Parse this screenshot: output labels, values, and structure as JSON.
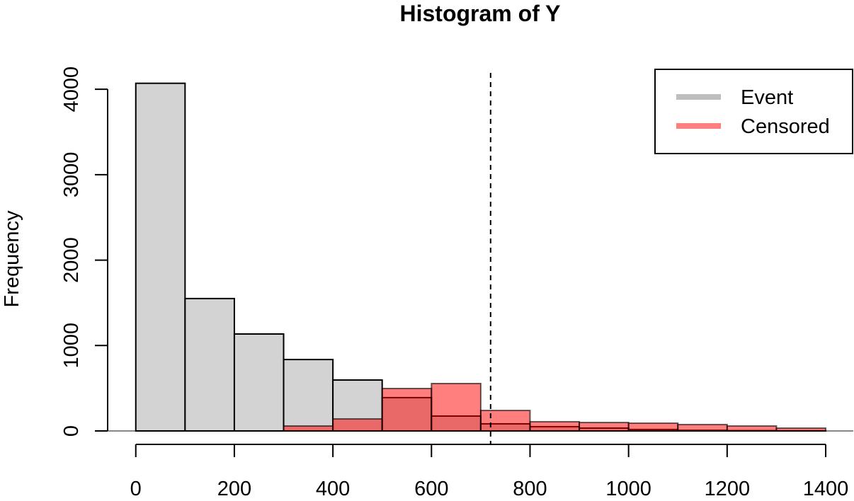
{
  "chart_data": {
    "type": "histogram",
    "title": "Histogram of Y",
    "y_label": "Frequency",
    "series": [
      {
        "name": "Event",
        "color": "#d3d3d3",
        "legend_color": "#bebebe",
        "bins": [
          0,
          100,
          200,
          300,
          400,
          500,
          600,
          700,
          800,
          900,
          1000,
          1100,
          1200,
          1300,
          1400
        ],
        "values": [
          4070,
          1550,
          1135,
          836,
          596,
          390,
          174,
          83,
          50,
          33,
          17,
          8,
          4,
          2
        ]
      },
      {
        "name": "Censored",
        "color": "rgba(255,0,0,0.5)",
        "legend_color": "#ff7f7f",
        "bins": [
          300,
          400,
          500,
          600,
          700,
          800,
          900,
          1000,
          1100,
          1200,
          1300,
          1400
        ],
        "values": [
          58,
          141,
          497,
          555,
          240,
          108,
          99,
          91,
          75,
          58,
          33
        ]
      }
    ],
    "vline": 720,
    "xlim": [
      -60,
      1456
    ],
    "ylim": [
      0,
      4200
    ],
    "xticks": [
      0,
      200,
      400,
      600,
      800,
      1000,
      1200,
      1400
    ],
    "yticks": [
      0,
      1000,
      2000,
      3000,
      4000
    ],
    "legend": "topright"
  }
}
